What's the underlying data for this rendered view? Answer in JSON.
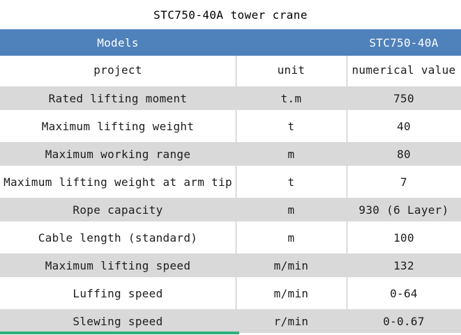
{
  "title": "STC750-40A tower crane",
  "table": {
    "header": {
      "models_label": "Models",
      "model_value": "STC750-40A"
    },
    "columns": [
      "project",
      "unit",
      "numerical value"
    ],
    "rows": [
      {
        "project": "Rated lifting moment",
        "unit": "t.m",
        "value": "750"
      },
      {
        "project": "Maximum lifting weight",
        "unit": "t",
        "value": "40"
      },
      {
        "project": "Maximum working range",
        "unit": "m",
        "value": "80"
      },
      {
        "project": "Maximum lifting weight at arm tip",
        "unit": "t",
        "value": "7"
      },
      {
        "project": "Rope capacity",
        "unit": "m",
        "value": "930 (6 Layer)"
      },
      {
        "project": "Cable length (standard)",
        "unit": "m",
        "value": "100"
      },
      {
        "project": "Maximum lifting speed",
        "unit": "m/min",
        "value": "132"
      },
      {
        "project": "Luffing speed",
        "unit": "m/min",
        "value": "0-64"
      },
      {
        "project": "Slewing speed",
        "unit": "r/min",
        "value": "0-0.67"
      }
    ]
  },
  "colors": {
    "header_bg": "#4f81bb",
    "header_text": "#ffffff",
    "alt_row_bg": "#d9d9d9",
    "row_bg": "#ffffff",
    "divider": "#b9bdc1",
    "text": "#1c1c1c",
    "accent_bar": "#2fb07e"
  }
}
